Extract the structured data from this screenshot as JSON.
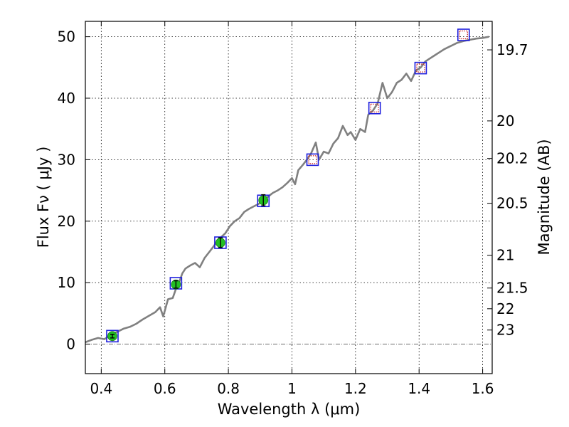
{
  "chart_data": {
    "type": "line",
    "xlabel": "Wavelength  λ (μm)",
    "ylabel": "Flux  Fν  ( μJy )",
    "ylabel_right": "Magnitude (AB)",
    "xlim": [
      0.35,
      1.63
    ],
    "ylim": [
      -4.8,
      52.5
    ],
    "grid": true,
    "x_ticks": [
      {
        "value": 0.4,
        "label": "0.4"
      },
      {
        "value": 0.6,
        "label": "0.6"
      },
      {
        "value": 0.8,
        "label": "0.8"
      },
      {
        "value": 1.0,
        "label": "1"
      },
      {
        "value": 1.2,
        "label": "1.2"
      },
      {
        "value": 1.4,
        "label": "1.4"
      },
      {
        "value": 1.6,
        "label": "1.6"
      }
    ],
    "y_ticks": [
      {
        "value": 0,
        "label": "0"
      },
      {
        "value": 10,
        "label": "10"
      },
      {
        "value": 20,
        "label": "20"
      },
      {
        "value": 30,
        "label": "30"
      },
      {
        "value": 40,
        "label": "40"
      },
      {
        "value": 50,
        "label": "50"
      }
    ],
    "right_ticks": [
      {
        "value": 19.7,
        "label": "19.7"
      },
      {
        "value": 20,
        "label": "20"
      },
      {
        "value": 20.2,
        "label": "20.2"
      },
      {
        "value": 20.5,
        "label": "20.5"
      },
      {
        "value": 21,
        "label": "21"
      },
      {
        "value": 21.5,
        "label": "21.5"
      },
      {
        "value": 22,
        "label": "22"
      },
      {
        "value": 23,
        "label": "23"
      }
    ],
    "series": [
      {
        "kind": "spectrum",
        "color": "#808080",
        "x": [
          0.35,
          0.37,
          0.39,
          0.41,
          0.43,
          0.45,
          0.47,
          0.49,
          0.51,
          0.53,
          0.55,
          0.57,
          0.585,
          0.595,
          0.61,
          0.625,
          0.635,
          0.645,
          0.655,
          0.665,
          0.68,
          0.695,
          0.71,
          0.725,
          0.74,
          0.755,
          0.765,
          0.775,
          0.79,
          0.805,
          0.82,
          0.835,
          0.85,
          0.865,
          0.88,
          0.895,
          0.91,
          0.925,
          0.94,
          0.955,
          0.97,
          0.985,
          1.0,
          1.01,
          1.02,
          1.035,
          1.05,
          1.06,
          1.075,
          1.085,
          1.1,
          1.115,
          1.13,
          1.145,
          1.16,
          1.175,
          1.185,
          1.2,
          1.215,
          1.23,
          1.24,
          1.255,
          1.27,
          1.285,
          1.3,
          1.315,
          1.33,
          1.345,
          1.36,
          1.375,
          1.39,
          1.405,
          1.42,
          1.435,
          1.45,
          1.465,
          1.48,
          1.5,
          1.52,
          1.54,
          1.56,
          1.58,
          1.6,
          1.62
        ],
        "y": [
          0.3,
          0.7,
          1.0,
          0.8,
          1.5,
          2.0,
          2.5,
          2.8,
          3.3,
          4.0,
          4.6,
          5.2,
          6.0,
          4.5,
          7.3,
          7.5,
          9.0,
          10.0,
          11.5,
          12.3,
          12.8,
          13.2,
          12.5,
          14.0,
          15.0,
          16.0,
          16.8,
          17.3,
          18.0,
          19.2,
          20.0,
          20.5,
          21.5,
          22.0,
          22.4,
          22.8,
          23.4,
          24.0,
          24.6,
          25.0,
          25.5,
          26.2,
          27.0,
          26.0,
          28.3,
          29.2,
          30.2,
          31.0,
          32.8,
          30.0,
          31.3,
          31.0,
          32.6,
          33.5,
          35.5,
          34.0,
          34.5,
          33.2,
          35.0,
          34.5,
          37.3,
          38.0,
          39.2,
          42.5,
          40.0,
          41.0,
          42.5,
          43.0,
          44.0,
          42.8,
          44.5,
          45.0,
          46.0,
          46.5,
          47.0,
          47.5,
          48.0,
          48.5,
          49.0,
          49.3,
          49.5,
          49.7,
          49.8,
          50.0
        ]
      },
      {
        "kind": "model",
        "marker": "open-square",
        "color": "#1f1fdd",
        "x": [
          0.435,
          0.635,
          0.775,
          0.91,
          1.065,
          1.26,
          1.405,
          1.54
        ],
        "y": [
          1.3,
          9.9,
          16.5,
          23.3,
          30.0,
          38.4,
          44.9,
          50.3
        ]
      },
      {
        "kind": "detections",
        "marker": "filled-circle",
        "color": "#22c022",
        "x": [
          0.435,
          0.635,
          0.775,
          0.91
        ],
        "y": [
          1.3,
          9.7,
          16.5,
          23.4
        ],
        "yerr": [
          0.3,
          0.6,
          0.8,
          0.9
        ]
      },
      {
        "kind": "upper-limits",
        "marker": "dotted-red-square",
        "color": "#cc2222",
        "x": [
          1.065,
          1.26,
          1.405,
          1.54
        ],
        "y": [
          30.0,
          38.4,
          44.9,
          50.3
        ]
      }
    ]
  }
}
